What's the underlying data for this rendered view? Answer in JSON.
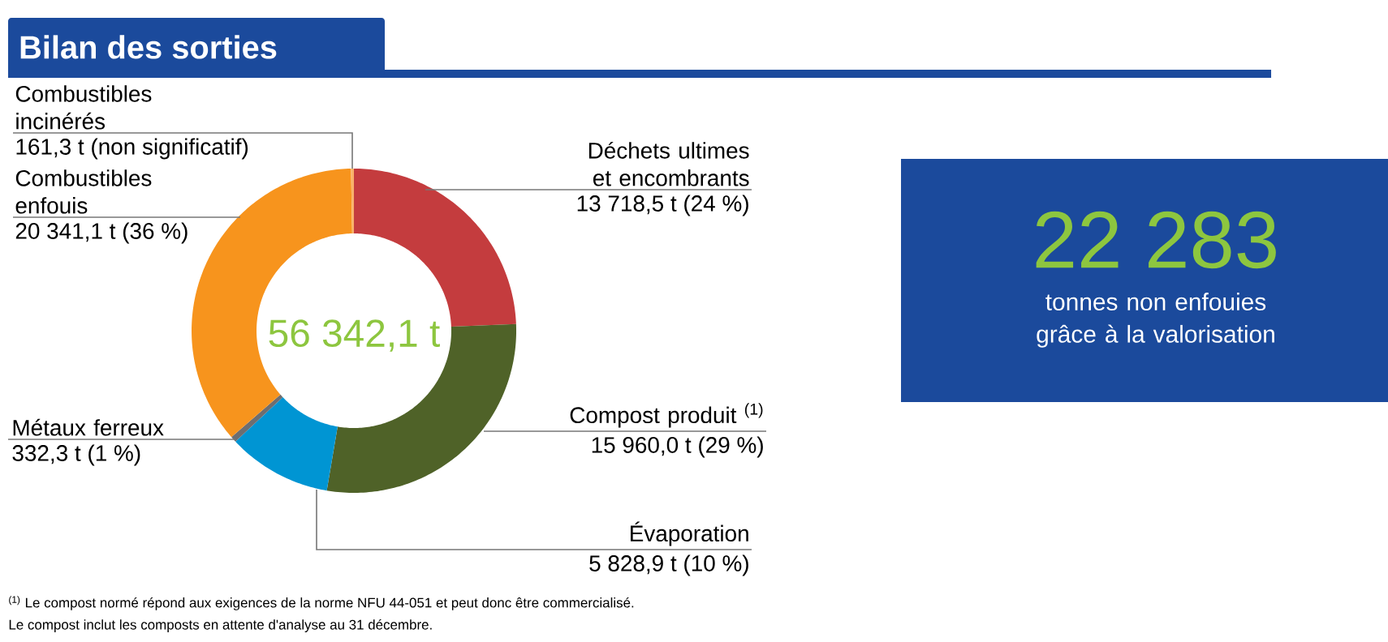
{
  "chart_data": {
    "type": "donut",
    "title": "Bilan des sorties",
    "categories": [
      "Déchets ultimes et encombrants",
      "Compost produit $^{(1)}$",
      "Évaporation",
      "Métaux ferreux",
      "Combustibles enfouis",
      "Combustibles incinérés"
    ],
    "values": [
      13718.5,
      15960.0,
      5828.9,
      332.3,
      20341.1,
      161.3
    ],
    "colors": [
      "#c43c3e",
      "#4f6228",
      "#0095d3",
      "#6d6e71",
      "#f7941d",
      "#f9b26b"
    ],
    "value_labels": [
      "13 718,5 t (24 %)",
      "15 960,0 t (29 %)",
      "5 828,9 t (10 %)",
      "332,3 t (1 %)",
      "20 341,1 t (36 %)",
      "161,3 t (non significatif)"
    ],
    "annotations": [
      "56 342,1 t",
      "22 283",
      "tonnes non enfouies grâce à la valorisation",
      "$^{(1)}$ Le compost normé répond aux exigences de la norme NFU 44-051 et peut donc être commercialisé.",
      "Le compost inclut les composts en attente d'analyse au 31 décembre."
    ]
  }
}
